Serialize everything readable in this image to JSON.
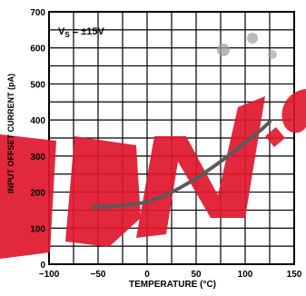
{
  "chart_data": {
    "type": "line",
    "title": "",
    "xlabel": "TEMPERATURE (°C)",
    "ylabel": "INPUT OFFSET CURRENT (pA)",
    "annotation": "VS = ±15V",
    "annotation_parts": {
      "main": "V",
      "sub": "S",
      "rest": " = ±15V"
    },
    "xlim": [
      -100,
      150
    ],
    "ylim": [
      0,
      700
    ],
    "x_ticks": [
      -100,
      -50,
      0,
      50,
      100,
      150
    ],
    "y_ticks": [
      0,
      100,
      200,
      300,
      400,
      500,
      600,
      700
    ],
    "grid": true,
    "series": [
      {
        "x": [
          -55,
          -40,
          -25,
          -10,
          0,
          10,
          25,
          40,
          55,
          70,
          85,
          100,
          115,
          125
        ],
        "y": [
          158,
          160,
          163,
          168,
          173,
          182,
          200,
          222,
          247,
          275,
          305,
          338,
          370,
          395
        ]
      }
    ],
    "colors": {
      "line": "#5a5a5a",
      "axis": "#000000",
      "grid": "#000000",
      "watermark": "#e0162b"
    },
    "watermark_text": "EDN.com"
  }
}
